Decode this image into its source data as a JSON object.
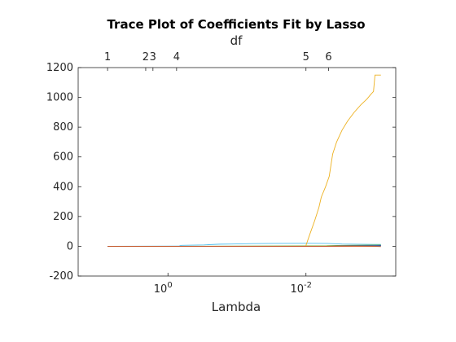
{
  "chart_data": {
    "type": "line",
    "title": "Trace Plot of Coefficients Fit by Lasso",
    "xlabel": "Lambda",
    "ylabel": "",
    "top_axis_label": "df",
    "x_scale": "log",
    "x_reversed": true,
    "xlim": [
      20,
      0.0005
    ],
    "ylim": [
      -200,
      1200
    ],
    "x_ticks": [
      {
        "value": 1,
        "label": "10",
        "exponent": "0"
      },
      {
        "value": 0.01,
        "label": "10",
        "exponent": "-2"
      }
    ],
    "y_ticks": [
      -200,
      0,
      200,
      400,
      600,
      800,
      1000,
      1200
    ],
    "df_ticks": [
      {
        "lambda": 7.5,
        "label": "1"
      },
      {
        "lambda": 2.1,
        "label": "2"
      },
      {
        "lambda": 1.65,
        "label": "3"
      },
      {
        "lambda": 0.75,
        "label": "4"
      },
      {
        "lambda": 0.01,
        "label": "5"
      },
      {
        "lambda": 0.0047,
        "label": "6"
      }
    ],
    "grid": false,
    "series": [
      {
        "color": "#4DBEEE",
        "points": [
          [
            7.5,
            0
          ],
          [
            0.7,
            1
          ],
          [
            0.64,
            6
          ],
          [
            0.3,
            9
          ],
          [
            0.18,
            14
          ],
          [
            0.12,
            15
          ],
          [
            0.06,
            18
          ],
          [
            0.03,
            19
          ],
          [
            0.012,
            20
          ],
          [
            0.005,
            19
          ],
          [
            0.003,
            15
          ],
          [
            0.001,
            12
          ],
          [
            0.00082,
            12
          ]
        ]
      },
      {
        "color": "#77AC30",
        "points": [
          [
            7.5,
            0
          ],
          [
            0.7,
            0
          ],
          [
            0.1,
            1
          ],
          [
            0.03,
            2
          ],
          [
            0.005,
            3
          ],
          [
            0.003,
            6
          ],
          [
            0.00082,
            8
          ]
        ]
      },
      {
        "color": "#EDB120",
        "points": [
          [
            7.5,
            0
          ],
          [
            0.0101,
            0
          ],
          [
            0.0088,
            80
          ],
          [
            0.0075,
            170
          ],
          [
            0.0065,
            260
          ],
          [
            0.006,
            330
          ],
          [
            0.0052,
            400
          ],
          [
            0.0046,
            470
          ],
          [
            0.0041,
            620
          ],
          [
            0.0036,
            700
          ],
          [
            0.003,
            780
          ],
          [
            0.0025,
            840
          ],
          [
            0.002,
            900
          ],
          [
            0.0016,
            950
          ],
          [
            0.0013,
            990
          ],
          [
            0.00115,
            1020
          ],
          [
            0.00105,
            1040
          ],
          [
            0.001,
            1150
          ],
          [
            0.00082,
            1150
          ]
        ]
      },
      {
        "color": "#7E2F8E",
        "points": [
          [
            7.5,
            0
          ],
          [
            0.005,
            0
          ],
          [
            0.003,
            2
          ],
          [
            0.001,
            4
          ],
          [
            0.00082,
            5
          ]
        ]
      },
      {
        "color": "#0072BD",
        "points": [
          [
            7.5,
            0
          ],
          [
            0.003,
            0
          ],
          [
            0.001,
            2
          ],
          [
            0.00082,
            3
          ]
        ]
      },
      {
        "color": "#D95319",
        "points": [
          [
            7.5,
            0
          ],
          [
            0.002,
            0
          ],
          [
            0.001,
            -1
          ],
          [
            0.00082,
            -2
          ]
        ]
      }
    ]
  }
}
